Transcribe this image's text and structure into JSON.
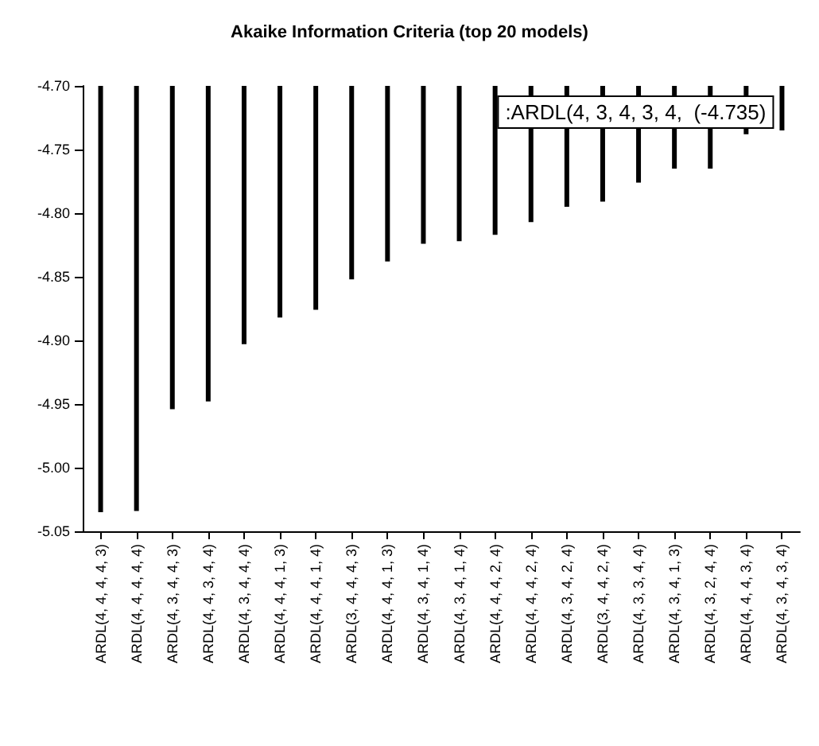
{
  "chart_data": {
    "type": "bar",
    "title": "Akaike Information Criteria (top 20 models)",
    "categories": [
      "ARDL(4, 4, 4, 4, 3)",
      "ARDL(4, 4, 4, 4, 4)",
      "ARDL(4, 3, 4, 4, 3)",
      "ARDL(4, 4, 3, 4, 4)",
      "ARDL(4, 3, 4, 4, 4)",
      "ARDL(4, 4, 4, 1, 3)",
      "ARDL(4, 4, 4, 1, 4)",
      "ARDL(3, 4, 4, 4, 3)",
      "ARDL(4, 4, 4, 1, 3)",
      "ARDL(4, 3, 4, 1, 4)",
      "ARDL(4, 3, 4, 1, 4)",
      "ARDL(4, 4, 4, 2, 4)",
      "ARDL(4, 4, 4, 2, 4)",
      "ARDL(4, 3, 4, 2, 4)",
      "ARDL(3, 4, 4, 2, 4)",
      "ARDL(4, 3, 3, 4, 4)",
      "ARDL(4, 3, 4, 1, 3)",
      "ARDL(4, 3, 2, 4, 4)",
      "ARDL(4, 4, 4, 3, 4)",
      "ARDL(4, 3, 4, 3, 4)"
    ],
    "values": [
      -5.035,
      -5.034,
      -4.954,
      -4.948,
      -4.903,
      -4.882,
      -4.876,
      -4.852,
      -4.838,
      -4.824,
      -4.822,
      -4.817,
      -4.807,
      -4.795,
      -4.791,
      -4.776,
      -4.765,
      -4.765,
      -4.738,
      -4.735
    ],
    "color": "#000000",
    "ylim": [
      -5.05,
      -4.7
    ],
    "yticks": [
      {
        "value": -5.05,
        "label": "-5.05"
      },
      {
        "value": -5.0,
        "label": "-5.00"
      },
      {
        "value": -4.95,
        "label": "-4.95"
      },
      {
        "value": -4.9,
        "label": "-4.90"
      },
      {
        "value": -4.85,
        "label": "-4.85"
      },
      {
        "value": -4.8,
        "label": "-4.80"
      },
      {
        "value": -4.75,
        "label": "-4.75"
      },
      {
        "value": -4.7,
        "label": "-4.70"
      }
    ],
    "grid": false,
    "annotations": [
      {
        "text": ":ARDL(4, 3, 4, 3, 4,  (-4.735)",
        "x": "ARDL(4, 3, 4, 3, 4)",
        "y": -4.735
      }
    ]
  }
}
